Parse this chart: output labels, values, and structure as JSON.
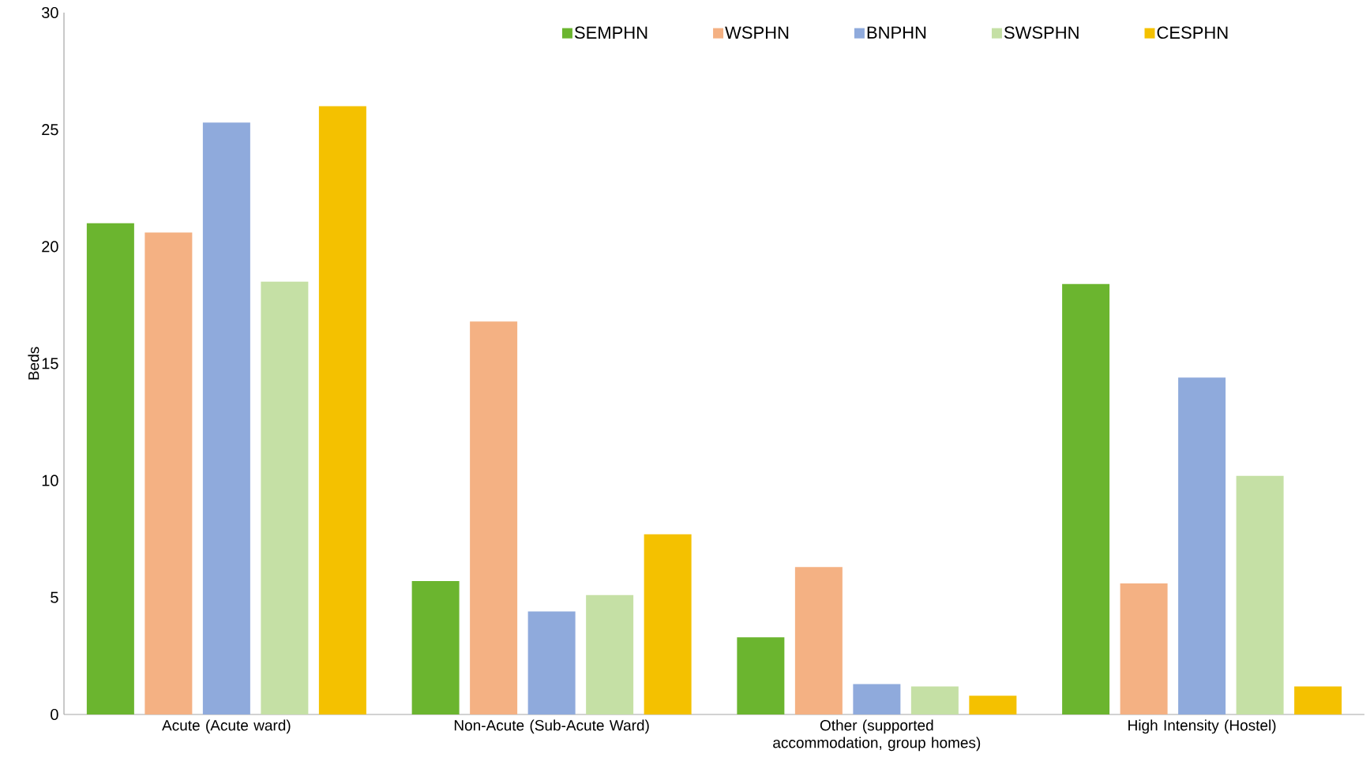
{
  "chart_data": {
    "type": "bar",
    "ylabel": "Beds",
    "categories": [
      "Acute (Acute ward)",
      "Non-Acute (Sub-Acute Ward)",
      "Other (supported accommodation, group homes)",
      "High Intensity (Hostel)"
    ],
    "series": [
      {
        "name": "SEMPHN",
        "color": "#6bb52f",
        "values": [
          21.0,
          5.7,
          3.3,
          18.4
        ]
      },
      {
        "name": "WSPHN",
        "color": "#f4b183",
        "values": [
          20.6,
          16.8,
          6.3,
          5.6
        ]
      },
      {
        "name": "BNPHN",
        "color": "#8faadc",
        "values": [
          25.3,
          4.4,
          1.3,
          14.4
        ]
      },
      {
        "name": "SWSPHN",
        "color": "#c5e0a5",
        "values": [
          18.5,
          5.1,
          1.2,
          10.2
        ]
      },
      {
        "name": "CESPHN",
        "color": "#f4c100",
        "values": [
          26.0,
          7.7,
          0.8,
          1.2
        ]
      }
    ],
    "ylim": [
      0,
      30
    ],
    "yticks": [
      0,
      5,
      10,
      15,
      20,
      25,
      30
    ],
    "grid": false,
    "legend": "top"
  }
}
